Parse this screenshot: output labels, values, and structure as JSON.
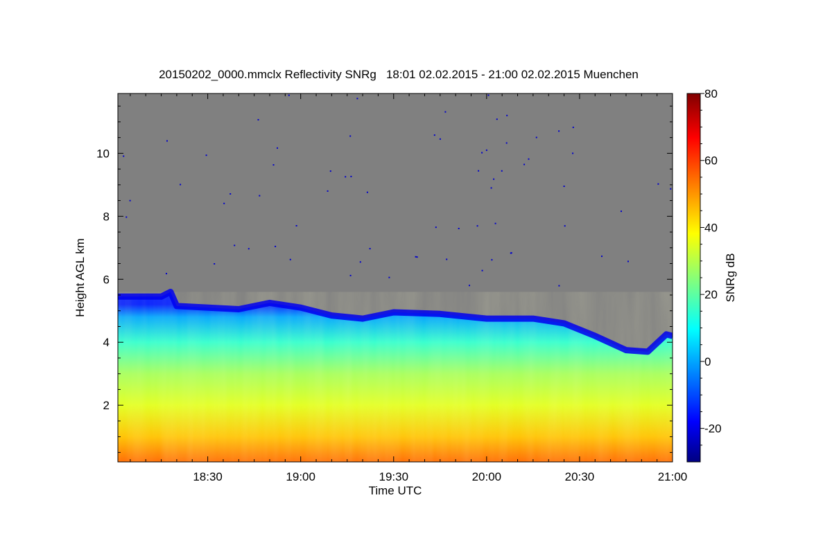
{
  "chart_data": {
    "type": "heatmap",
    "title": "20150202_0000.mmclx Reflectivity SNRg   18:01 02.02.2015 - 21:00 02.02.2015 Muenchen",
    "xlabel": "Time UTC",
    "ylabel": "Height AGL km",
    "colorbar_label": "SNRg dB",
    "x_range": [
      "18:01",
      "21:00"
    ],
    "y_range": [
      0.2,
      11.9
    ],
    "x_ticks": [
      "18:30",
      "19:00",
      "19:30",
      "20:00",
      "20:30",
      "21:00"
    ],
    "y_ticks": [
      2,
      4,
      6,
      8,
      10
    ],
    "colorbar_range": [
      -30,
      80
    ],
    "colorbar_ticks": [
      -20,
      0,
      20,
      40,
      60,
      80
    ],
    "colormap": "jet",
    "missing_color": "#808080",
    "cloud_top_km": [
      [
        "18:01",
        5.45
      ],
      [
        "18:15",
        5.45
      ],
      [
        "18:18",
        5.6
      ],
      [
        "18:20",
        5.15
      ],
      [
        "18:40",
        5.05
      ],
      [
        "18:50",
        5.25
      ],
      [
        "19:00",
        5.1
      ],
      [
        "19:10",
        4.85
      ],
      [
        "19:20",
        4.75
      ],
      [
        "19:30",
        4.95
      ],
      [
        "19:45",
        4.9
      ],
      [
        "20:00",
        4.75
      ],
      [
        "20:15",
        4.75
      ],
      [
        "20:25",
        4.6
      ],
      [
        "20:35",
        4.2
      ],
      [
        "20:45",
        3.75
      ],
      [
        "20:52",
        3.7
      ],
      [
        "20:58",
        4.25
      ],
      [
        "21:00",
        4.2
      ]
    ],
    "snr_profile_db": [
      [
        0.2,
        55
      ],
      [
        1.0,
        45
      ],
      [
        2.0,
        35
      ],
      [
        3.0,
        28
      ],
      [
        4.0,
        15
      ],
      [
        4.8,
        0
      ],
      [
        5.2,
        -15
      ]
    ]
  }
}
